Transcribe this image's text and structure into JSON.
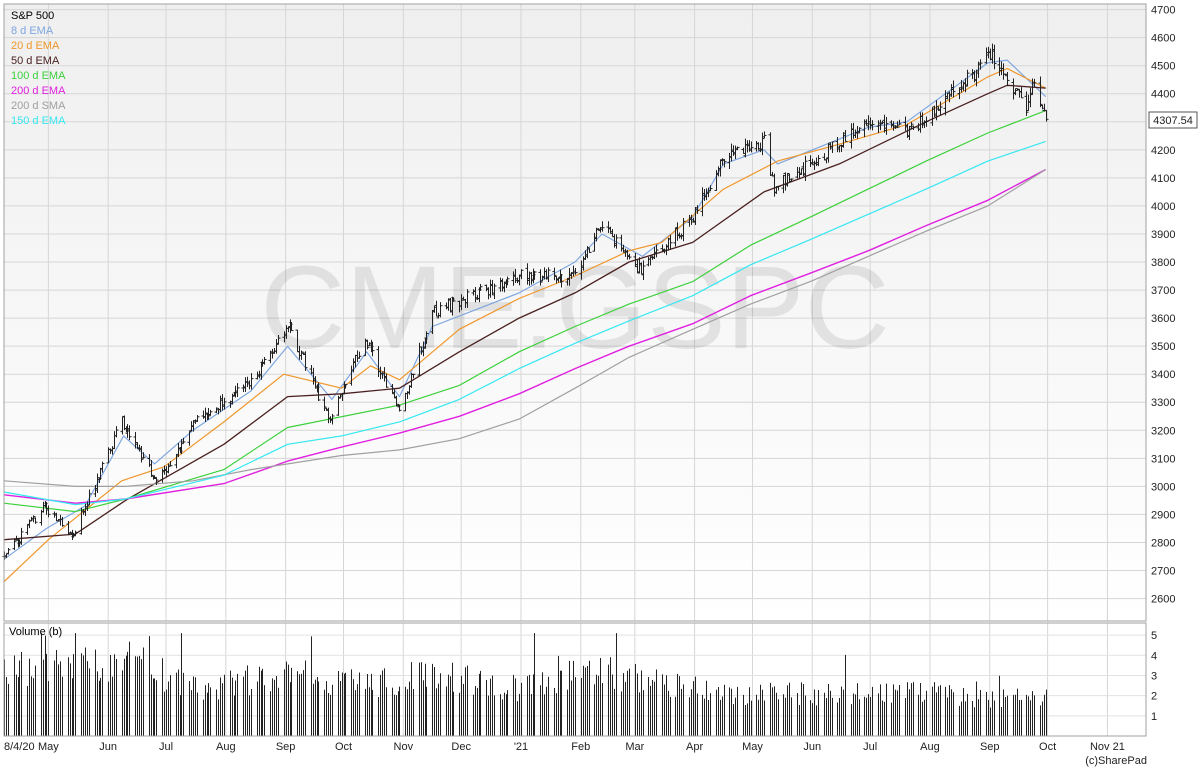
{
  "chart_data": {
    "type": "candlestick",
    "title": "S&P 500",
    "watermark": "CME:GSPC",
    "last_price_label": "4307.54",
    "credit": "(c)SharePad",
    "volume_panel_label": "Volume (b)",
    "price_ylim": [
      2520,
      4720
    ],
    "price_ticks": [
      2600,
      2700,
      2800,
      2900,
      3000,
      3100,
      3200,
      3300,
      3400,
      3500,
      3600,
      3700,
      3800,
      3900,
      4000,
      4100,
      4200,
      4300,
      4400,
      4500,
      4600,
      4700
    ],
    "volume_ylim": [
      0,
      5.6
    ],
    "volume_ticks": [
      1,
      2,
      3,
      4,
      5
    ],
    "x_labels": [
      "8/4/20",
      "May",
      "Jun",
      "Jul",
      "Aug",
      "Sep",
      "Oct",
      "Nov",
      "Dec",
      "'21",
      "Feb",
      "Mar",
      "Apr",
      "May",
      "Jun",
      "Jul",
      "Aug",
      "Sep",
      "Oct",
      "Nov 21"
    ],
    "x_start": "2020-04-08",
    "x_end": "2021-11-21",
    "grid": true,
    "legend_position": "top-left",
    "colors": {
      "candles": "#222222",
      "background_top": "#f0f0f0",
      "background_bottom": "#ffffff",
      "grid": "#d6d6d6"
    },
    "series": [
      {
        "name": "8 d EMA",
        "color": "#7ea6e0",
        "width": 1.2,
        "type": "line",
        "points": [
          [
            "2020-04-08",
            2740
          ],
          [
            "2020-04-30",
            2850
          ],
          [
            "2020-05-20",
            2930
          ],
          [
            "2020-06-09",
            3180
          ],
          [
            "2020-06-25",
            3080
          ],
          [
            "2020-07-15",
            3200
          ],
          [
            "2020-08-14",
            3340
          ],
          [
            "2020-09-02",
            3500
          ],
          [
            "2020-09-25",
            3310
          ],
          [
            "2020-10-13",
            3480
          ],
          [
            "2020-10-30",
            3320
          ],
          [
            "2020-11-16",
            3570
          ],
          [
            "2020-12-31",
            3690
          ],
          [
            "2021-01-29",
            3800
          ],
          [
            "2021-02-12",
            3900
          ],
          [
            "2021-03-05",
            3820
          ],
          [
            "2021-03-31",
            3960
          ],
          [
            "2021-04-16",
            4150
          ],
          [
            "2021-05-07",
            4200
          ],
          [
            "2021-05-14",
            4150
          ],
          [
            "2021-06-30",
            4280
          ],
          [
            "2021-07-20",
            4300
          ],
          [
            "2021-08-31",
            4510
          ],
          [
            "2021-09-10",
            4520
          ],
          [
            "2021-09-30",
            4390
          ]
        ]
      },
      {
        "name": "20 d EMA",
        "color": "#f0962a",
        "width": 1.2,
        "type": "line",
        "points": [
          [
            "2020-04-08",
            2660
          ],
          [
            "2020-05-01",
            2810
          ],
          [
            "2020-06-08",
            3020
          ],
          [
            "2020-06-30",
            3070
          ],
          [
            "2020-07-31",
            3230
          ],
          [
            "2020-08-31",
            3400
          ],
          [
            "2020-09-30",
            3350
          ],
          [
            "2020-10-15",
            3430
          ],
          [
            "2020-10-30",
            3380
          ],
          [
            "2020-11-30",
            3560
          ],
          [
            "2020-12-31",
            3670
          ],
          [
            "2021-01-29",
            3750
          ],
          [
            "2021-02-26",
            3840
          ],
          [
            "2021-03-15",
            3870
          ],
          [
            "2021-04-16",
            4060
          ],
          [
            "2021-05-14",
            4160
          ],
          [
            "2021-06-15",
            4220
          ],
          [
            "2021-07-20",
            4290
          ],
          [
            "2021-08-31",
            4460
          ],
          [
            "2021-09-10",
            4490
          ],
          [
            "2021-09-30",
            4420
          ]
        ]
      },
      {
        "name": "50 d EMA",
        "color": "#4a2020",
        "width": 1.3,
        "type": "line",
        "points": [
          [
            "2020-04-08",
            2810
          ],
          [
            "2020-05-15",
            2830
          ],
          [
            "2020-06-10",
            2950
          ],
          [
            "2020-07-31",
            3150
          ],
          [
            "2020-09-02",
            3320
          ],
          [
            "2020-09-30",
            3330
          ],
          [
            "2020-10-30",
            3350
          ],
          [
            "2020-11-30",
            3480
          ],
          [
            "2020-12-31",
            3600
          ],
          [
            "2021-01-29",
            3690
          ],
          [
            "2021-02-26",
            3800
          ],
          [
            "2021-03-31",
            3870
          ],
          [
            "2021-05-07",
            4050
          ],
          [
            "2021-06-15",
            4150
          ],
          [
            "2021-07-30",
            4300
          ],
          [
            "2021-08-31",
            4400
          ],
          [
            "2021-09-10",
            4430
          ],
          [
            "2021-09-30",
            4420
          ]
        ]
      },
      {
        "name": "100 d EMA",
        "color": "#3dd13d",
        "width": 1.2,
        "type": "line",
        "points": [
          [
            "2020-04-08",
            2940
          ],
          [
            "2020-05-15",
            2910
          ],
          [
            "2020-06-10",
            2955
          ],
          [
            "2020-07-31",
            3060
          ],
          [
            "2020-09-02",
            3210
          ],
          [
            "2020-10-30",
            3290
          ],
          [
            "2020-11-30",
            3360
          ],
          [
            "2020-12-31",
            3480
          ],
          [
            "2021-01-29",
            3570
          ],
          [
            "2021-02-26",
            3650
          ],
          [
            "2021-03-31",
            3730
          ],
          [
            "2021-04-30",
            3860
          ],
          [
            "2021-05-31",
            3960
          ],
          [
            "2021-06-30",
            4060
          ],
          [
            "2021-07-30",
            4160
          ],
          [
            "2021-08-31",
            4260
          ],
          [
            "2021-09-30",
            4340
          ]
        ]
      },
      {
        "name": "200 d EMA",
        "color": "#e020e0",
        "width": 1.4,
        "type": "line",
        "points": [
          [
            "2020-04-08",
            2970
          ],
          [
            "2020-05-15",
            2940
          ],
          [
            "2020-06-10",
            2955
          ],
          [
            "2020-07-31",
            3010
          ],
          [
            "2020-09-02",
            3090
          ],
          [
            "2020-09-30",
            3140
          ],
          [
            "2020-10-30",
            3190
          ],
          [
            "2020-11-30",
            3250
          ],
          [
            "2020-12-31",
            3330
          ],
          [
            "2021-01-29",
            3420
          ],
          [
            "2021-02-26",
            3500
          ],
          [
            "2021-03-31",
            3580
          ],
          [
            "2021-04-30",
            3680
          ],
          [
            "2021-05-31",
            3760
          ],
          [
            "2021-06-30",
            3840
          ],
          [
            "2021-07-30",
            3930
          ],
          [
            "2021-08-31",
            4020
          ],
          [
            "2021-09-30",
            4130
          ]
        ]
      },
      {
        "name": "200 d SMA",
        "color": "#a0a0a0",
        "width": 1.2,
        "type": "line",
        "points": [
          [
            "2020-04-08",
            3020
          ],
          [
            "2020-05-15",
            3000
          ],
          [
            "2020-06-10",
            3000
          ],
          [
            "2020-07-15",
            3020
          ],
          [
            "2020-08-14",
            3060
          ],
          [
            "2020-09-30",
            3110
          ],
          [
            "2020-10-30",
            3130
          ],
          [
            "2020-11-30",
            3170
          ],
          [
            "2020-12-31",
            3240
          ],
          [
            "2021-01-29",
            3350
          ],
          [
            "2021-02-26",
            3460
          ],
          [
            "2021-03-31",
            3560
          ],
          [
            "2021-04-30",
            3650
          ],
          [
            "2021-05-31",
            3730
          ],
          [
            "2021-06-30",
            3820
          ],
          [
            "2021-07-30",
            3910
          ],
          [
            "2021-08-31",
            4000
          ],
          [
            "2021-09-30",
            4130
          ]
        ]
      },
      {
        "name": "150 d EMA",
        "color": "#35e8f2",
        "width": 1.2,
        "type": "line",
        "points": [
          [
            "2020-04-08",
            2980
          ],
          [
            "2020-05-15",
            2935
          ],
          [
            "2020-06-10",
            2955
          ],
          [
            "2020-07-31",
            3040
          ],
          [
            "2020-09-02",
            3150
          ],
          [
            "2020-09-30",
            3180
          ],
          [
            "2020-10-30",
            3230
          ],
          [
            "2020-11-30",
            3310
          ],
          [
            "2020-12-31",
            3420
          ],
          [
            "2021-01-29",
            3510
          ],
          [
            "2021-02-26",
            3590
          ],
          [
            "2021-03-31",
            3680
          ],
          [
            "2021-04-30",
            3790
          ],
          [
            "2021-05-31",
            3880
          ],
          [
            "2021-06-30",
            3970
          ],
          [
            "2021-07-30",
            4060
          ],
          [
            "2021-08-31",
            4160
          ],
          [
            "2021-09-30",
            4230
          ]
        ]
      }
    ],
    "price_path": [
      [
        "2020-04-08",
        2750
      ],
      [
        "2020-04-29",
        2930
      ],
      [
        "2020-05-13",
        2820
      ],
      [
        "2020-06-08",
        3230
      ],
      [
        "2020-06-26",
        3010
      ],
      [
        "2020-07-15",
        3220
      ],
      [
        "2020-08-14",
        3370
      ],
      [
        "2020-09-02",
        3580
      ],
      [
        "2020-09-23",
        3240
      ],
      [
        "2020-10-12",
        3530
      ],
      [
        "2020-10-30",
        3270
      ],
      [
        "2020-11-16",
        3620
      ],
      [
        "2020-12-31",
        3750
      ],
      [
        "2021-01-27",
        3750
      ],
      [
        "2021-02-12",
        3930
      ],
      [
        "2021-03-04",
        3770
      ],
      [
        "2021-03-31",
        3960
      ],
      [
        "2021-04-16",
        4180
      ],
      [
        "2021-05-07",
        4230
      ],
      [
        "2021-05-12",
        4060
      ],
      [
        "2021-06-30",
        4300
      ],
      [
        "2021-07-20",
        4260
      ],
      [
        "2021-08-31",
        4520
      ],
      [
        "2021-09-02",
        4540
      ],
      [
        "2021-09-20",
        4360
      ],
      [
        "2021-09-24",
        4450
      ],
      [
        "2021-09-30",
        4307
      ]
    ],
    "volume_path": [
      [
        "2020-04-08",
        3.4
      ],
      [
        "2020-06-15",
        3.8
      ],
      [
        "2020-07-15",
        2.4
      ],
      [
        "2020-09-08",
        3.2
      ],
      [
        "2020-10-15",
        2.5
      ],
      [
        "2020-11-09",
        3.2
      ],
      [
        "2020-12-31",
        2.4
      ],
      [
        "2021-01-29",
        3.3
      ],
      [
        "2021-03-05",
        3.0
      ],
      [
        "2021-04-16",
        2.2
      ],
      [
        "2021-06-15",
        2.1
      ],
      [
        "2021-07-30",
        2.2
      ],
      [
        "2021-08-31",
        1.9
      ],
      [
        "2021-09-30",
        2.0
      ]
    ]
  }
}
